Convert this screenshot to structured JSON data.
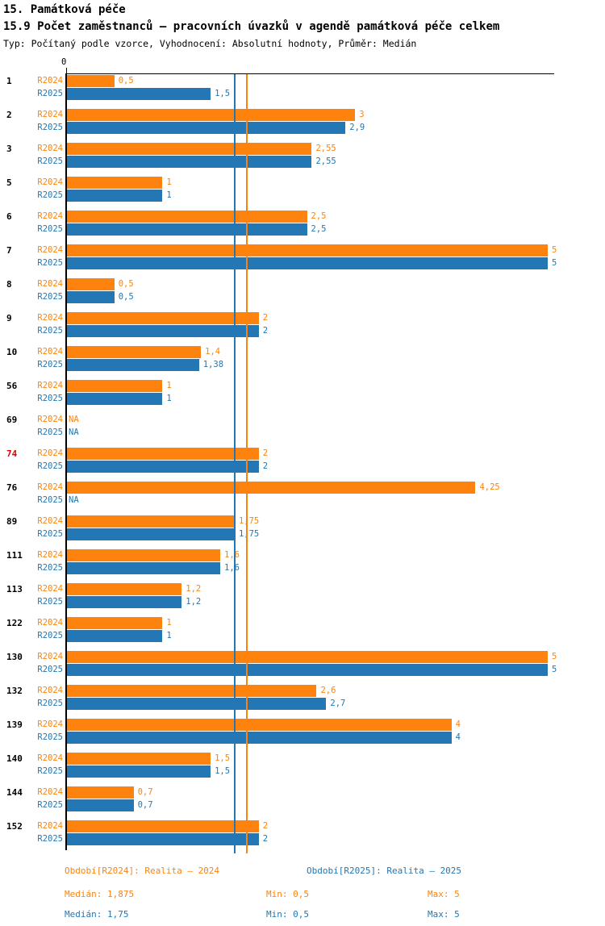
{
  "header": {
    "title": "15. Památková péče",
    "subtitle": "15.9 Počet zaměstnanců – pracovních úvazků v agendě památková péče celkem",
    "meta": "Typ: Počítaný podle vzorce, Vyhodnocení: Absolutní hodnoty, Průměr: Medián"
  },
  "chart_data": {
    "type": "bar",
    "orientation": "horizontal",
    "title": "15.9 Počet zaměstnanců – pracovních úvazků v agendě památková péče celkem",
    "xlim": [
      0,
      5
    ],
    "zero_tick_label": "0",
    "grid": false,
    "na_text": "NA",
    "categories": [
      "1",
      "2",
      "3",
      "5",
      "6",
      "7",
      "8",
      "9",
      "10",
      "56",
      "69",
      "74",
      "76",
      "89",
      "111",
      "113",
      "122",
      "130",
      "132",
      "139",
      "140",
      "144",
      "152"
    ],
    "highlighted_categories": [
      "74"
    ],
    "highlight_color": "#e10000",
    "series": [
      {
        "name": "R2024",
        "color": "#fd830e",
        "values": [
          "0,5",
          "3",
          "2,55",
          "1",
          "2,5",
          "5",
          "0,5",
          "2",
          "1,4",
          "1",
          "NA",
          "2",
          "4,25",
          "1,75",
          "1,6",
          "1,2",
          "1",
          "5",
          "2,6",
          "4",
          "1,5",
          "0,7",
          "2"
        ]
      },
      {
        "name": "R2025",
        "color": "#2277b4",
        "values": [
          "1,5",
          "2,9",
          "2,55",
          "1",
          "2,5",
          "5",
          "0,5",
          "2",
          "1,38",
          "1",
          "NA",
          "2",
          "NA",
          "1,75",
          "1,6",
          "1,2",
          "1",
          "5",
          "2,7",
          "4",
          "1,5",
          "0,7",
          "2"
        ]
      }
    ],
    "reference_lines": [
      {
        "name": "median-r2024",
        "value": 1.875,
        "color": "#fd830e"
      },
      {
        "name": "median-r2025",
        "value": 1.75,
        "color": "#2277b4"
      }
    ]
  },
  "footer": {
    "legend": [
      {
        "name": "r2024",
        "label": "Období[R2024]: Realita – 2024",
        "color": "#fd830e"
      },
      {
        "name": "r2025",
        "label": "Období[R2025]: Realita – 2025",
        "color": "#2277b4"
      }
    ],
    "stats": [
      {
        "name": "r2024",
        "median": "Medián: 1,875",
        "min": "Min: 0,5",
        "max": "Max: 5",
        "color": "#fd830e"
      },
      {
        "name": "r2025",
        "median": "Medián: 1,75",
        "min": "Min: 0,5",
        "max": "Max: 5",
        "color": "#2277b4"
      }
    ]
  }
}
